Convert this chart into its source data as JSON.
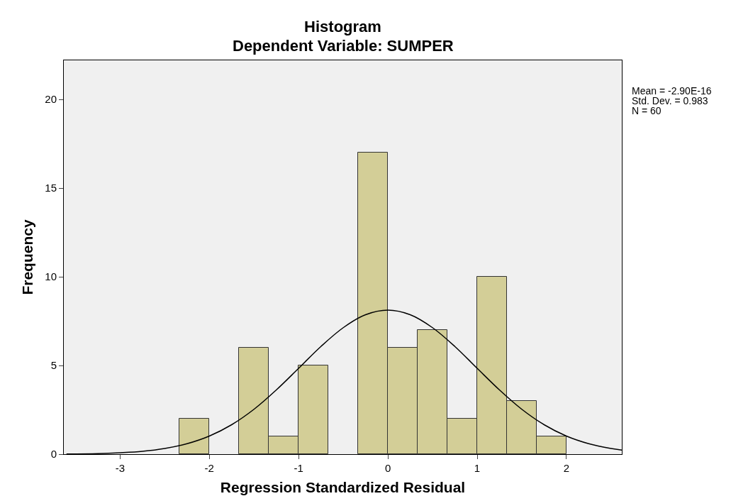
{
  "chart_data": {
    "type": "histogram",
    "title": "Histogram",
    "subtitle": "Dependent Variable: SUMPER",
    "xlabel": "Regression Standardized Residual",
    "ylabel": "Frequency",
    "bins": [
      -2.333,
      -2.0,
      -1.667,
      -1.333,
      -1.0,
      -0.667,
      -0.333,
      0.0,
      0.333,
      0.667,
      1.0,
      1.333,
      1.667,
      2.0
    ],
    "values": [
      2,
      0,
      6,
      1,
      5,
      0,
      17,
      6,
      7,
      2,
      10,
      3,
      1
    ],
    "color": "#d3ce97",
    "series": [
      {
        "type": "line",
        "color": "#000000",
        "x": [
          -3.6,
          -3.25,
          -3,
          -2.75,
          -2.5,
          -2.25,
          -2,
          -1.75,
          -1.5,
          -1.25,
          -1,
          -0.75,
          -0.5,
          -0.25,
          0,
          0.25,
          0.5,
          0.75,
          1,
          1.25,
          1.5,
          1.75,
          2,
          2.25,
          2.5,
          2.62
        ],
        "values": [
          0.01,
          0.03,
          0.08,
          0.16,
          0.32,
          0.59,
          1.02,
          1.66,
          2.53,
          3.62,
          4.84,
          6.07,
          7.13,
          7.86,
          8.12,
          7.86,
          7.13,
          6.07,
          4.84,
          3.62,
          2.53,
          1.66,
          1.02,
          0.59,
          0.32,
          0.23
        ]
      }
    ],
    "xlim": [
      -3.63,
      2.62
    ],
    "xticks": [
      -3,
      -2,
      -1,
      0,
      1,
      2
    ],
    "ylim": [
      0,
      22.2
    ],
    "yticks": [
      0,
      5,
      10,
      15,
      20
    ],
    "grid": false,
    "annotations": [
      "Mean = -2.90E-16",
      "Std. Dev. = 0.983",
      "N = 60"
    ]
  }
}
